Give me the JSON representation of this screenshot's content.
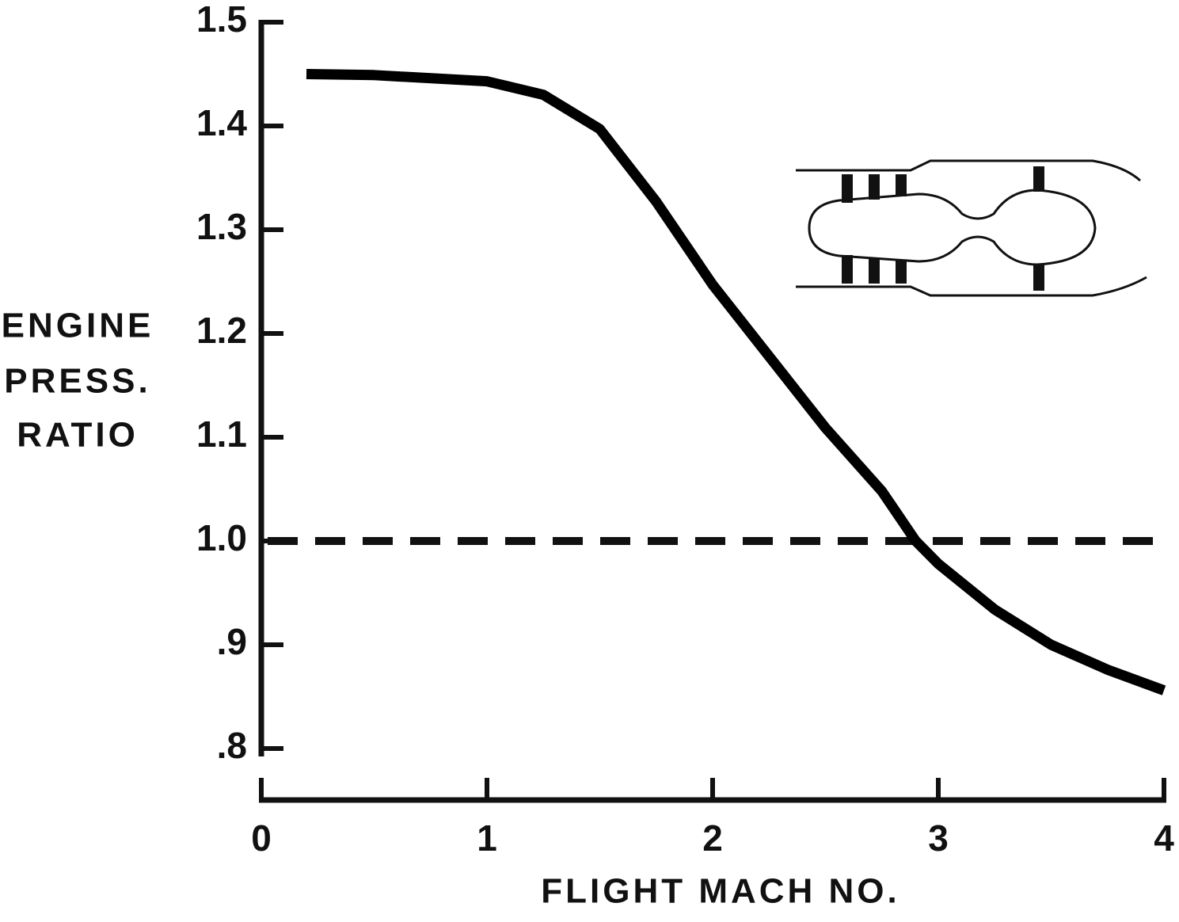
{
  "chart_data": {
    "type": "line",
    "ylabel": [
      "ENGINE",
      "PRESS.",
      "RATIO"
    ],
    "xlabel": "FLIGHT MACH NO.",
    "x": [
      0.2,
      0.5,
      1.0,
      1.25,
      1.5,
      1.75,
      2.0,
      2.25,
      2.5,
      2.75,
      2.9,
      3.0,
      3.25,
      3.5,
      3.75,
      4.0
    ],
    "series": [
      {
        "color": "#000000",
        "values": [
          1.45,
          1.449,
          1.443,
          1.43,
          1.397,
          1.327,
          1.247,
          1.178,
          1.109,
          1.048,
          1.0,
          0.978,
          0.934,
          0.9,
          0.876,
          0.856
        ]
      }
    ],
    "reference_line": 1.0,
    "xlim": [
      0,
      4
    ],
    "xticks": [
      0,
      1,
      2,
      3,
      4
    ],
    "ylim": [
      0.8,
      1.5
    ],
    "yticks": [
      {
        "value": 0.8,
        "label": ".8"
      },
      {
        "value": 0.9,
        "label": ".9"
      },
      {
        "value": 1.0,
        "label": "1.0"
      },
      1.1,
      1.2,
      1.3,
      1.4,
      1.5
    ],
    "grid": false
  }
}
